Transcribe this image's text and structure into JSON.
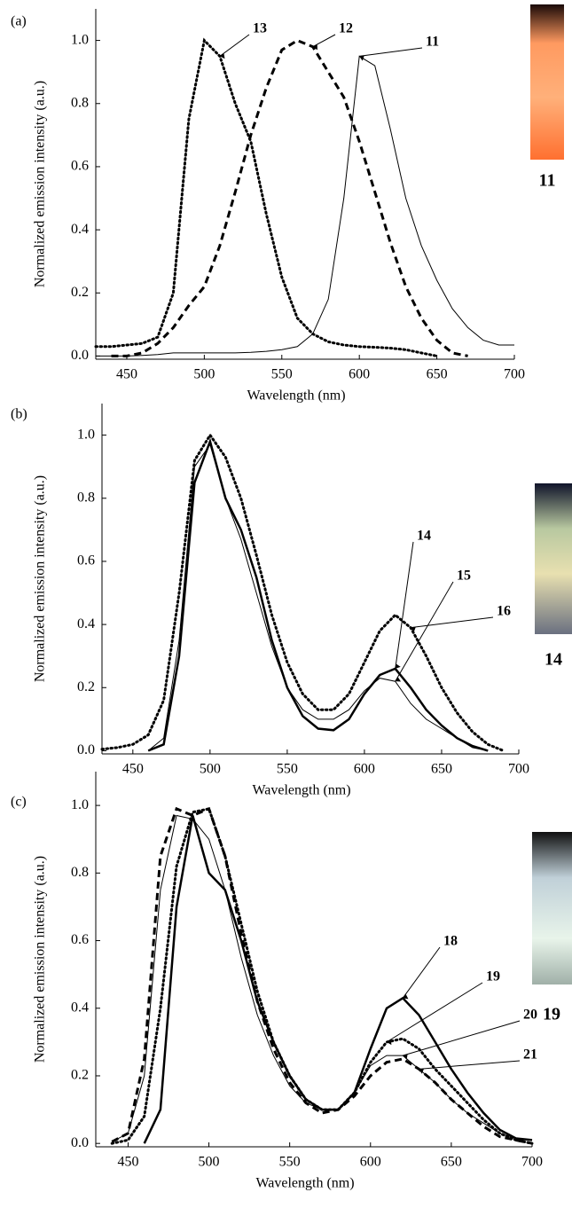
{
  "chart_data": [
    {
      "type": "line",
      "panel_label": "(a)",
      "x_label": "Wavelength (nm)",
      "y_label": "Normalized emission intensity (a.u.)",
      "photo_label": "11",
      "x": [
        430,
        440,
        450,
        460,
        470,
        480,
        490,
        500,
        510,
        520,
        530,
        540,
        550,
        560,
        570,
        580,
        590,
        600,
        610,
        620,
        630,
        640,
        650,
        660,
        670,
        680,
        690,
        700
      ],
      "xlim": [
        430,
        700
      ],
      "xticks": [
        450,
        500,
        550,
        600,
        650,
        700
      ],
      "ylim": [
        -0.01,
        1.1
      ],
      "yticks": [
        {
          "value": 0,
          "label": "0.0"
        },
        0.2,
        0.4,
        0.6,
        0.8,
        {
          "value": 1,
          "label": "1.0"
        }
      ],
      "series": [
        {
          "name": "13",
          "color": "#000000",
          "style": "dotted",
          "values": [
            0.03,
            0.03,
            0.035,
            0.04,
            0.06,
            0.2,
            0.75,
            1.0,
            0.95,
            0.8,
            0.68,
            0.45,
            0.25,
            0.12,
            0.07,
            0.045,
            0.035,
            0.03,
            0.028,
            0.025,
            0.02,
            0.01,
            0.0,
            null,
            null,
            null,
            null,
            null
          ]
        },
        {
          "name": "12",
          "color": "#000000",
          "style": "dashed",
          "values": [
            null,
            0,
            0,
            0.01,
            0.04,
            0.09,
            0.16,
            0.22,
            0.35,
            0.52,
            0.7,
            0.85,
            0.97,
            1.0,
            0.98,
            0.9,
            0.82,
            0.68,
            0.52,
            0.36,
            0.22,
            0.12,
            0.05,
            0.01,
            0,
            null,
            null,
            null
          ]
        },
        {
          "name": "11",
          "color": "#000000",
          "style": "thin",
          "values": [
            0,
            0,
            0,
            0.002,
            0.005,
            0.01,
            0.01,
            0.01,
            0.01,
            0.01,
            0.012,
            0.015,
            0.02,
            0.03,
            0.07,
            0.18,
            0.5,
            0.95,
            0.92,
            0.72,
            0.5,
            0.35,
            0.24,
            0.15,
            0.09,
            0.05,
            0.035,
            0.035
          ]
        }
      ]
    },
    {
      "type": "line",
      "panel_label": "(b)",
      "x_label": "Wavelength (nm)",
      "y_label": "Normalized emission intensity (a.u.)",
      "photo_label": "14",
      "x": [
        430,
        440,
        450,
        460,
        470,
        480,
        490,
        500,
        510,
        520,
        530,
        540,
        550,
        560,
        570,
        580,
        590,
        600,
        610,
        620,
        630,
        640,
        650,
        660,
        670,
        680,
        690,
        700
      ],
      "xlim": [
        430,
        700
      ],
      "xticks": [
        450,
        500,
        550,
        600,
        650,
        700
      ],
      "ylim": [
        -0.01,
        1.1
      ],
      "yticks": [
        {
          "value": 0,
          "label": "0.0"
        },
        0.2,
        0.4,
        0.6,
        0.8,
        {
          "value": 1,
          "label": "1.0"
        }
      ],
      "series": [
        {
          "name": "14",
          "color": "#000000",
          "style": "thick",
          "values": [
            null,
            null,
            null,
            0,
            0.02,
            0.3,
            0.85,
            0.98,
            0.8,
            0.7,
            0.55,
            0.35,
            0.2,
            0.11,
            0.07,
            0.065,
            0.1,
            0.18,
            0.24,
            0.26,
            0.2,
            0.13,
            0.08,
            0.04,
            0.015,
            0,
            null,
            null
          ]
        },
        {
          "name": "15",
          "color": "#000000",
          "style": "thin",
          "values": [
            null,
            null,
            null,
            0,
            0.04,
            0.35,
            0.9,
            0.97,
            0.8,
            0.67,
            0.5,
            0.33,
            0.2,
            0.13,
            0.1,
            0.1,
            0.13,
            0.19,
            0.23,
            0.22,
            0.15,
            0.1,
            0.07,
            0.04,
            0.01,
            0,
            null,
            null
          ]
        },
        {
          "name": "16",
          "color": "#000000",
          "style": "dotted",
          "values": [
            0.005,
            0.01,
            0.02,
            0.05,
            0.16,
            0.5,
            0.92,
            1.0,
            0.93,
            0.8,
            0.62,
            0.43,
            0.28,
            0.18,
            0.13,
            0.13,
            0.18,
            0.28,
            0.38,
            0.43,
            0.39,
            0.3,
            0.2,
            0.12,
            0.06,
            0.02,
            0,
            null
          ]
        }
      ]
    },
    {
      "type": "line",
      "panel_label": "(c)",
      "x_label": "Wavelength (nm)",
      "y_label": "Normalized emission intensity (a.u.)",
      "photo_label": "19",
      "x": [
        430,
        440,
        450,
        460,
        470,
        480,
        490,
        500,
        510,
        520,
        530,
        540,
        550,
        560,
        570,
        580,
        590,
        600,
        610,
        620,
        630,
        640,
        650,
        660,
        670,
        680,
        690,
        700
      ],
      "xlim": [
        430,
        700
      ],
      "xticks": [
        450,
        500,
        550,
        600,
        650,
        700
      ],
      "ylim": [
        -0.01,
        1.1
      ],
      "yticks": [
        {
          "value": 0,
          "label": "0.0"
        },
        0.2,
        0.4,
        0.6,
        0.8,
        {
          "value": 1,
          "label": "1.0"
        }
      ],
      "series": [
        {
          "name": "18",
          "color": "#000000",
          "style": "thick",
          "values": [
            null,
            null,
            null,
            0,
            0.1,
            0.7,
            0.97,
            0.8,
            0.75,
            0.6,
            0.42,
            0.3,
            0.2,
            0.13,
            0.1,
            0.1,
            0.15,
            0.28,
            0.4,
            0.43,
            0.38,
            0.3,
            0.22,
            0.15,
            0.09,
            0.04,
            0.015,
            0.01
          ]
        },
        {
          "name": "19",
          "color": "#000000",
          "style": "dotted",
          "values": [
            null,
            0,
            0.01,
            0.08,
            0.4,
            0.82,
            0.98,
            0.99,
            0.85,
            0.65,
            0.45,
            0.3,
            0.2,
            0.13,
            0.1,
            0.1,
            0.15,
            0.24,
            0.3,
            0.31,
            0.28,
            0.22,
            0.17,
            0.12,
            0.07,
            0.03,
            0.01,
            0
          ]
        },
        {
          "name": "20",
          "color": "#000000",
          "style": "thin",
          "values": [
            null,
            0.005,
            0.03,
            0.2,
            0.75,
            0.97,
            0.96,
            0.9,
            0.75,
            0.55,
            0.38,
            0.26,
            0.17,
            0.12,
            0.1,
            0.1,
            0.15,
            0.23,
            0.26,
            0.26,
            0.22,
            0.18,
            0.13,
            0.09,
            0.06,
            0.03,
            0.015,
            0.01
          ]
        },
        {
          "name": "21",
          "color": "#000000",
          "style": "dashed",
          "values": [
            null,
            0.005,
            0.03,
            0.25,
            0.85,
            0.99,
            0.97,
            0.99,
            0.85,
            0.62,
            0.42,
            0.28,
            0.18,
            0.12,
            0.09,
            0.1,
            0.14,
            0.2,
            0.24,
            0.25,
            0.22,
            0.18,
            0.13,
            0.09,
            0.05,
            0.02,
            0.01,
            0
          ]
        }
      ]
    }
  ]
}
